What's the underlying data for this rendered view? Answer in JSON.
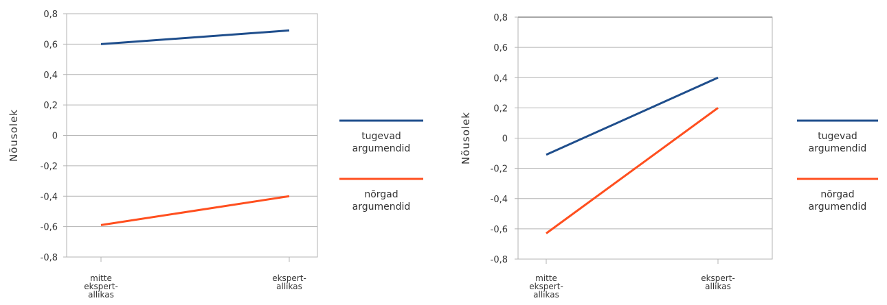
{
  "chart_data": [
    {
      "type": "line",
      "ylabel": "Nõusolek",
      "categories": [
        [
          "mitte",
          "ekspert-",
          "allikas"
        ],
        [
          "ekspert-",
          "allikas"
        ]
      ],
      "ylim": [
        -0.8,
        0.8
      ],
      "yticks": [
        "0,8",
        "0,6",
        "0,4",
        "0,2",
        "0",
        "-0,2",
        "-0,4",
        "-0,6",
        "-0,8"
      ],
      "grid": true,
      "legend_position": "right",
      "series": [
        {
          "name": [
            "tugevad",
            "argumendid"
          ],
          "values": [
            0.6,
            0.69
          ],
          "color": "#1f4e8c"
        },
        {
          "name": [
            "nõrgad",
            "argumendid"
          ],
          "values": [
            -0.59,
            -0.4
          ],
          "color": "#ff4f1f"
        }
      ]
    },
    {
      "type": "line",
      "ylabel": "Nõusolek",
      "categories": [
        [
          "mitte",
          "ekspert-",
          "allikas"
        ],
        [
          "ekspert-",
          "allikas"
        ]
      ],
      "ylim": [
        -0.8,
        0.8
      ],
      "yticks": [
        "0,8",
        "0,6",
        "0,4",
        "0,2",
        "0",
        "-0,2",
        "-0,4",
        "-0,6",
        "-0,8"
      ],
      "grid": true,
      "legend_position": "right",
      "series": [
        {
          "name": [
            "tugevad",
            "argumendid"
          ],
          "values": [
            -0.11,
            0.4
          ],
          "color": "#1f4e8c"
        },
        {
          "name": [
            "nõrgad",
            "argumendid"
          ],
          "values": [
            -0.63,
            0.2
          ],
          "color": "#ff4f1f"
        }
      ]
    }
  ]
}
